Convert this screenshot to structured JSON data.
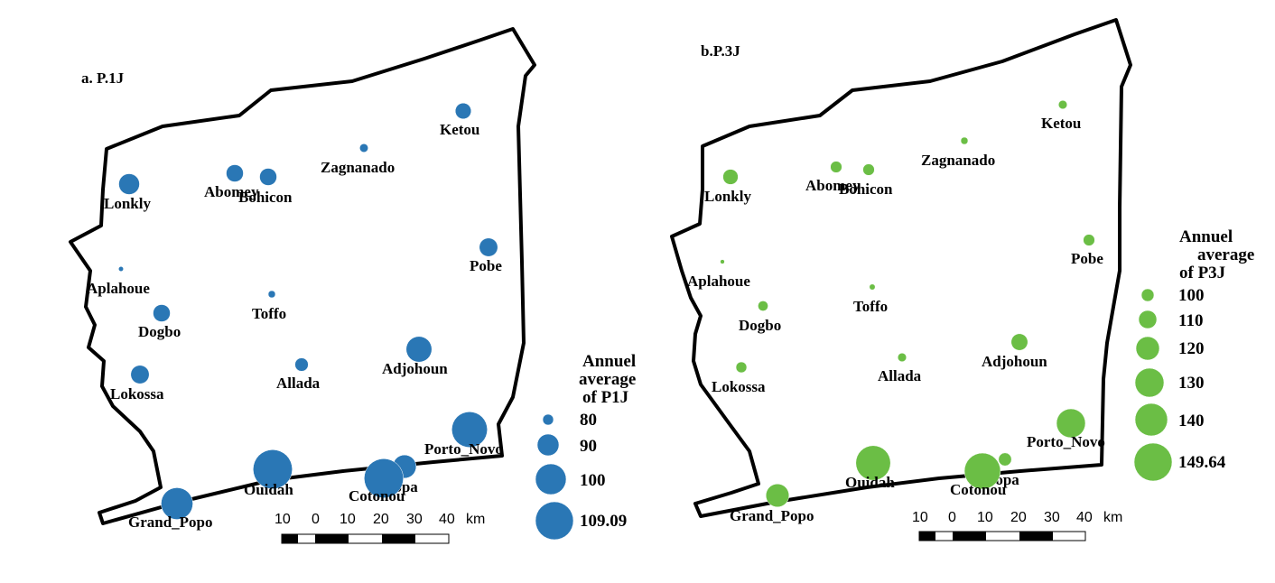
{
  "maps": [
    {
      "title": "a. P.1J",
      "color": "#2a77b5",
      "legend": {
        "title_lines": [
          "Annuel",
          "average",
          "of P1J"
        ],
        "values": [
          "80",
          "90",
          "100",
          "109.09"
        ]
      },
      "stations": [
        {
          "name": "Ketou",
          "value": 87
        },
        {
          "name": "Zagnanado",
          "value": 81
        },
        {
          "name": "Abomey",
          "value": 88
        },
        {
          "name": "Bohicon",
          "value": 88
        },
        {
          "name": "Lonkly",
          "value": 91
        },
        {
          "name": "Pobe",
          "value": 89
        },
        {
          "name": "Aplahoue",
          "value": 78
        },
        {
          "name": "Toffo",
          "value": 80
        },
        {
          "name": "Dogbo",
          "value": 88
        },
        {
          "name": "Adjohoun",
          "value": 95
        },
        {
          "name": "Allada",
          "value": 85
        },
        {
          "name": "Lokossa",
          "value": 89
        },
        {
          "name": "Porto_Novo",
          "value": 103
        },
        {
          "name": "Ouidah",
          "value": 106
        },
        {
          "name": "Bopa",
          "value": 93
        },
        {
          "name": "Cotonou",
          "value": 106
        },
        {
          "name": "Grand_Popo",
          "value": 100
        }
      ],
      "scale": {
        "labels": [
          "10",
          "0",
          "10",
          "20",
          "30",
          "40"
        ],
        "unit": "km"
      }
    },
    {
      "title": "b.P.3J",
      "color": "#6bbe45",
      "legend": {
        "title_lines": [
          "Annuel",
          "average",
          "of P3J"
        ],
        "values": [
          "100",
          "110",
          "120",
          "130",
          "140",
          "149.64"
        ]
      },
      "stations": [
        {
          "name": "Ketou",
          "value": 102
        },
        {
          "name": "Zagnanado",
          "value": 100
        },
        {
          "name": "Abomey",
          "value": 106
        },
        {
          "name": "Bohicon",
          "value": 106
        },
        {
          "name": "Lonkly",
          "value": 111
        },
        {
          "name": "Pobe",
          "value": 106
        },
        {
          "name": "Aplahoue",
          "value": 96
        },
        {
          "name": "Toffo",
          "value": 98
        },
        {
          "name": "Dogbo",
          "value": 104
        },
        {
          "name": "Adjohoun",
          "value": 113
        },
        {
          "name": "Allada",
          "value": 102
        },
        {
          "name": "Lokossa",
          "value": 105
        },
        {
          "name": "Porto_Novo",
          "value": 130
        },
        {
          "name": "Ouidah",
          "value": 138
        },
        {
          "name": "Bopa",
          "value": 108
        },
        {
          "name": "Cotonou",
          "value": 140
        },
        {
          "name": "Grand_Popo",
          "value": 122
        }
      ],
      "scale": {
        "labels": [
          "10",
          "0",
          "10",
          "20",
          "30",
          "40"
        ],
        "unit": "km"
      }
    }
  ]
}
